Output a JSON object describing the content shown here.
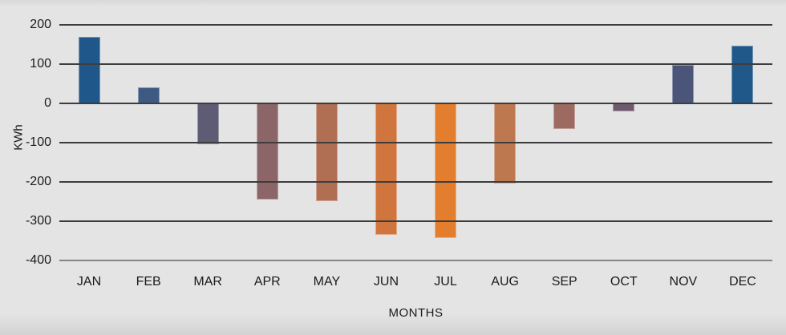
{
  "chart_data": {
    "type": "bar",
    "categories": [
      "JAN",
      "FEB",
      "MAR",
      "APR",
      "MAY",
      "JUN",
      "JUL",
      "AUG",
      "SEP",
      "OCT",
      "NOV",
      "DEC"
    ],
    "values": [
      170,
      40,
      -105,
      -245,
      -248,
      -335,
      -343,
      -205,
      -65,
      -20,
      98,
      147
    ],
    "bar_colors": [
      "#1f578b",
      "#3e5a82",
      "#5e5c74",
      "#8b6568",
      "#b06e52",
      "#d0753d",
      "#e27e2d",
      "#bd7850",
      "#9c6a60",
      "#6e5a6c",
      "#4b557a",
      "#20588a"
    ],
    "title": "",
    "xlabel": "MONTHS",
    "ylabel": "KWh",
    "ylim": [
      -400,
      200
    ],
    "yticks": [
      200,
      100,
      0,
      -100,
      -200,
      -300,
      -400
    ],
    "grid": true,
    "legend": false,
    "gridline_color": "#3d3d3d",
    "bottom_gridline_color": "#858585",
    "background_color": "#e4e4e4",
    "text_color": "#1a1a1a"
  }
}
